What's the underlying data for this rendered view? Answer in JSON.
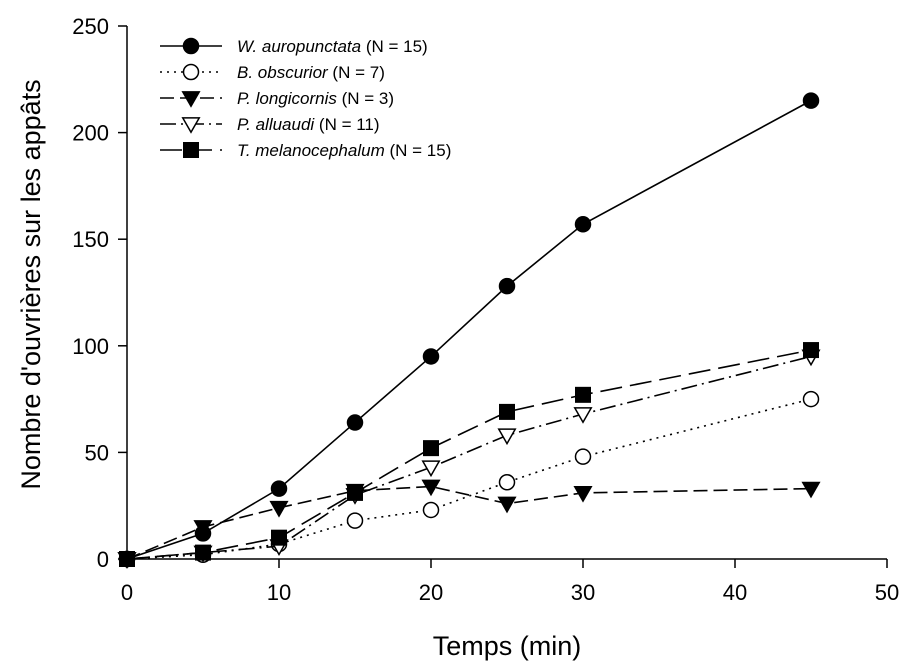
{
  "chart_data": {
    "type": "line",
    "title": "",
    "xlabel": "Temps (min)",
    "ylabel": "Nombre d'ouvrières sur les appâts",
    "xlim": [
      0,
      50
    ],
    "ylim": [
      0,
      250
    ],
    "xticks": [
      0,
      10,
      20,
      30,
      40,
      50
    ],
    "yticks": [
      0,
      50,
      100,
      150,
      200,
      250
    ],
    "grid": false,
    "legend_position": "top-left",
    "series": [
      {
        "name": "W. auropunctata",
        "n_label": "(N = 15)",
        "marker": "circle-filled",
        "line_style": "solid",
        "x": [
          0,
          5,
          10,
          15,
          20,
          25,
          30,
          45
        ],
        "y": [
          0,
          12,
          33,
          64,
          95,
          128,
          157,
          215
        ]
      },
      {
        "name": "B. obscurior",
        "n_label": "(N = 7)",
        "marker": "circle-open",
        "line_style": "dotted",
        "x": [
          0,
          5,
          10,
          15,
          20,
          25,
          30,
          45
        ],
        "y": [
          0,
          2,
          7,
          18,
          23,
          36,
          48,
          75
        ]
      },
      {
        "name": "P. longicornis",
        "n_label": "(N = 3)",
        "marker": "triangle-down-filled",
        "line_style": "dashed",
        "x": [
          0,
          5,
          10,
          15,
          20,
          25,
          30,
          45
        ],
        "y": [
          0,
          15,
          24,
          32,
          34,
          26,
          31,
          33
        ]
      },
      {
        "name": "P. alluaudi",
        "n_label": "(N = 11)",
        "marker": "triangle-down-open",
        "line_style": "dash-dot",
        "x": [
          0,
          5,
          10,
          15,
          20,
          25,
          30,
          45
        ],
        "y": [
          0,
          3,
          6,
          30,
          43,
          58,
          68,
          95
        ]
      },
      {
        "name": "T. melanocephalum",
        "n_label": "(N = 15)",
        "marker": "square-filled",
        "line_style": "long-dash",
        "x": [
          0,
          5,
          10,
          15,
          20,
          25,
          30,
          45
        ],
        "y": [
          0,
          3,
          10,
          31,
          52,
          69,
          77,
          98
        ]
      }
    ]
  }
}
